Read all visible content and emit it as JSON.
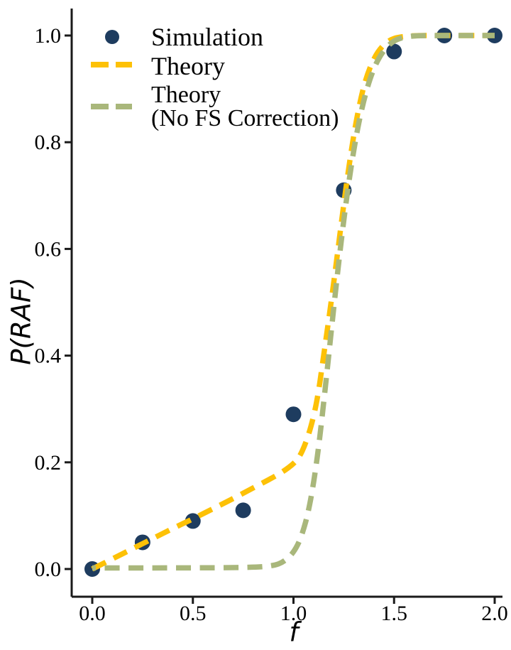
{
  "figure": {
    "background": "#ffffff",
    "text_color": "#000000",
    "spine_color": "#1a1a1a"
  },
  "chart_data": {
    "type": "line+scatter",
    "title": "",
    "xlabel": "f",
    "ylabel": "P(RAF)",
    "xlim": [
      0,
      2
    ],
    "ylim": [
      0,
      1
    ],
    "grid": false,
    "legend_position": "upper-left",
    "x_ticks": {
      "values": [
        0.0,
        0.5,
        1.0,
        1.5,
        2.0
      ],
      "labels": [
        "0.0",
        "0.5",
        "1.0",
        "1.5",
        "2.0"
      ]
    },
    "y_ticks": {
      "values": [
        0.0,
        0.2,
        0.4,
        0.6,
        0.8,
        1.0
      ],
      "labels": [
        "0.0",
        "0.2",
        "0.4",
        "0.6",
        "0.8",
        "1.0"
      ]
    },
    "series": [
      {
        "name": "Simulation",
        "type": "scatter",
        "color": "#1e3c5f",
        "marker": "circle",
        "marker_radius": 11,
        "x": [
          0.0,
          0.25,
          0.5,
          0.75,
          1.0,
          1.25,
          1.5,
          1.75,
          2.0
        ],
        "y": [
          0.0,
          0.05,
          0.09,
          0.11,
          0.29,
          0.71,
          0.97,
          1.0,
          1.0
        ]
      },
      {
        "name": "Theory",
        "type": "dashed-line",
        "color": "#fdc106",
        "dash": [
          21,
          12.5
        ],
        "dash_offset": 0,
        "line_width": 7.5,
        "x": [
          0.0,
          0.1,
          0.2,
          0.3,
          0.4,
          0.5,
          0.6,
          0.7,
          0.8,
          0.9,
          0.95,
          1.0,
          1.03,
          1.06,
          1.09,
          1.12,
          1.15,
          1.18,
          1.21,
          1.24,
          1.27,
          1.3,
          1.33,
          1.36,
          1.4,
          1.44,
          1.48,
          1.52,
          1.6,
          1.75,
          2.0
        ],
        "y": [
          0.0,
          0.019,
          0.038,
          0.057,
          0.076,
          0.094,
          0.113,
          0.132,
          0.152,
          0.172,
          0.183,
          0.197,
          0.21,
          0.235,
          0.27,
          0.32,
          0.4,
          0.48,
          0.565,
          0.655,
          0.74,
          0.815,
          0.875,
          0.92,
          0.958,
          0.98,
          0.992,
          0.997,
          1.0,
          1.0,
          1.0
        ]
      },
      {
        "name": "Theory (No FS Correction)",
        "type": "dashed-line",
        "color": "#a9b77b",
        "dash": [
          21,
          12.5
        ],
        "dash_offset": 16,
        "line_width": 7.5,
        "x": [
          0.0,
          0.5,
          0.8,
          0.9,
          0.95,
          1.0,
          1.04,
          1.08,
          1.12,
          1.16,
          1.2,
          1.24,
          1.28,
          1.32,
          1.36,
          1.4,
          1.44,
          1.48,
          1.52,
          1.58,
          1.65,
          2.0
        ],
        "y": [
          0.002,
          0.002,
          0.003,
          0.006,
          0.013,
          0.03,
          0.06,
          0.115,
          0.21,
          0.345,
          0.49,
          0.625,
          0.74,
          0.83,
          0.895,
          0.94,
          0.968,
          0.985,
          0.994,
          0.999,
          1.0,
          1.0
        ]
      }
    ]
  },
  "legend": {
    "items": [
      {
        "label": "Simulation"
      },
      {
        "label": "Theory"
      },
      {
        "label_line1": "Theory",
        "label_line2": "(No FS Correction)"
      }
    ]
  }
}
